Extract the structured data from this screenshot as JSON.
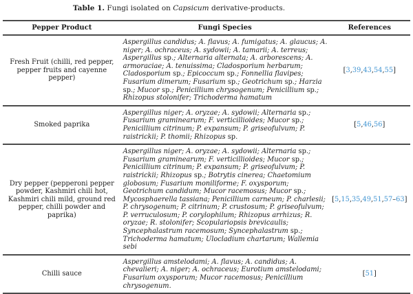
{
  "caption": {
    "label": "Table 1.",
    "before_italic": " Fungi isolated on ",
    "italic_word": "Capsicum",
    "after_italic": " derivative-products."
  },
  "colors": {
    "link": "#4295d2",
    "rule": "#4b4b4b",
    "text": "#1c1c1c"
  },
  "table": {
    "headers": [
      "Pepper Product",
      "Fungi Species",
      "References"
    ],
    "rows": [
      {
        "product": "Fresh Fruit (chilli, red pepper, pepper fruits and cayenne pepper)",
        "species": "Aspergillus candidus; A. flavus; A. fumigatus; A. glaucus; A. niger; A. ochraceus; A. sydowii; A. tamarii; A. terreus; Aspergillus sp.; Alternaria alternata; A. arborescens; A. armoraciae; A. tenuissima; Cladosporium herbarum; Cladosporium sp.; Epicoccum sp.; Fonnellia flavipes; Fusarium dimerum; Fusarium sp.; Geotrichum sp.; Harzia sp.; Mucor sp.; Penicillium chrysogenum; Penicillium sp.; Rhizopus stolonifer; Trichoderma hamatum",
        "references": "[3,39,43,54,55]"
      },
      {
        "product": "Smoked paprika",
        "species": "Aspergillus niger; A. oryzae; A. sydowii; Alternaria sp.; Fusarium graminearum; F. verticillioides; Mucor sp.; Penicillium citrinum; P. expansum; P. griseofulvum; P. raistrickii; P. thomii; Rhizopus sp.",
        "references": "[5,46,56]"
      },
      {
        "product": "Dry pepper (pepperoni pepper powder, Kashmiri chili hot, Kashmiri chili mild, ground red pepper, chilli powder and paprika)",
        "species": "Aspergillus niger; A. oryzae; A. sydowii; Alternaria sp.; Fusarium graminearum; F. verticillioides; Mucor sp.; Penicillium citrinum; P. expansum; P. griseofulvum; P. raistrickii; Rhizopus sp.; Botrytis cinerea; Chaetomium globosum; Fusarium moniliforme; F. oxysporum; Geotrichum candidum; Mucor racemosus; Mucor sp.; Mycosphaerella tassiana; Penicillium carneum; P. charlesii; P. chrysogenum; P. citrinum; P. crustosum; P. griseofulvum; P. verruculosum; P. corylophilum; Rhizopus arrhizus; R. oryzae; R. stolonifer; Scopulariopsis brevicaulis; Syncephalastrum racemosum; Syncephalastrum sp.; Trichoderma hamatum; Ulocladium chartarum; Wallemia sebi",
        "references": "[5,15,35,49,51,57–63]"
      },
      {
        "product": "Chilli sauce",
        "species": "Aspergillus amstelodami; A. flavus; A. candidus; A. chevalieri; A. niger; A. ochraceus; Eurotium amstelodami; Fusarium oxysporum; Mucor racemosus; Penicillium chrysogenum.",
        "references": "[51]"
      }
    ]
  }
}
